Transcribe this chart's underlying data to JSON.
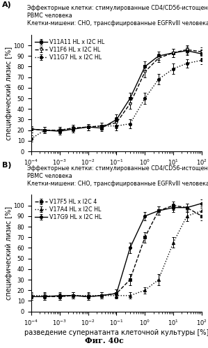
{
  "title_A_line1": "Эффекторные клетки: стимулированные CD4/CD56-истощенные",
  "title_A_line2": "PBMC человека",
  "title_A_line3": "Клетки-мишени: CHO, трансфицированные EGFRvIII человека",
  "title_B_line1": "Эффекторные клетки: стимулированные CD4/CD56-истощенные",
  "title_B_line2": "PBMC человека",
  "title_B_line3": "Клетки-мишени: CHO, трансфицированные EGFRvIII человека",
  "xlabel": "разведение супернатанта клеточной культуры [%]",
  "ylabel": "специфический лизис [%]",
  "caption": "Фиг. 40с",
  "xmin": 0.0001,
  "xmax": 100.0,
  "ymin": 0,
  "ymax": 110,
  "yticks": [
    0,
    10,
    20,
    30,
    40,
    50,
    60,
    70,
    80,
    90,
    100
  ],
  "A_x": [
    0.0001,
    0.0003,
    0.001,
    0.003,
    0.01,
    0.03,
    0.1,
    0.3,
    1,
    3,
    10,
    30,
    100
  ],
  "A_V11A11_y": [
    21,
    20,
    19,
    21,
    23,
    22,
    30,
    50,
    80,
    90,
    93,
    95,
    92
  ],
  "A_V11A11_err": [
    3,
    3,
    3,
    3,
    3,
    3,
    5,
    5,
    5,
    4,
    4,
    4,
    4
  ],
  "A_V11F6_y": [
    21,
    20,
    20,
    22,
    23,
    24,
    27,
    45,
    75,
    88,
    93,
    96,
    94
  ],
  "A_V11F6_err": [
    3,
    3,
    3,
    3,
    3,
    3,
    5,
    5,
    5,
    4,
    4,
    4,
    4
  ],
  "A_V11G7_y": [
    12,
    20,
    20,
    22,
    23,
    24,
    24,
    26,
    50,
    68,
    78,
    83,
    86
  ],
  "A_V11G7_err": [
    3,
    3,
    3,
    3,
    3,
    3,
    4,
    4,
    5,
    5,
    5,
    4,
    4
  ],
  "A_legend": [
    "V11A11 HL x I2C HL",
    "V11F6 HL x I2C HL",
    "V11G7 HL x I2C HL"
  ],
  "A_styles": [
    "solid",
    "dashed",
    "dotted"
  ],
  "A_markers": [
    "s",
    "v",
    "o"
  ],
  "B_x": [
    0.0001,
    0.0003,
    0.001,
    0.003,
    0.01,
    0.03,
    0.1,
    0.3,
    1,
    3,
    10,
    30,
    100
  ],
  "B_V17F5_y": [
    14,
    14,
    14,
    15,
    14,
    15,
    17,
    30,
    70,
    95,
    100,
    98,
    90
  ],
  "B_V17F5_err": [
    3,
    3,
    3,
    3,
    3,
    3,
    4,
    5,
    5,
    4,
    4,
    4,
    4
  ],
  "B_V17A4_y": [
    15,
    15,
    14,
    15,
    15,
    15,
    15,
    15,
    20,
    30,
    65,
    90,
    95
  ],
  "B_V17A4_err": [
    3,
    3,
    3,
    3,
    3,
    3,
    3,
    3,
    3,
    5,
    5,
    5,
    4
  ],
  "B_V17G9_y": [
    14,
    14,
    15,
    15,
    14,
    15,
    17,
    60,
    90,
    95,
    98,
    98,
    102
  ],
  "B_V17G9_err": [
    3,
    3,
    3,
    3,
    3,
    3,
    4,
    5,
    4,
    4,
    4,
    4,
    4
  ],
  "B_legend": [
    "V17F5 HL x I2C 4",
    "V17A4 HL x I2C HL",
    "V17G9 HL x I2C HL"
  ],
  "B_styles": [
    "dashed",
    "dotted",
    "solid"
  ],
  "B_markers": [
    "s",
    "^",
    "o"
  ]
}
